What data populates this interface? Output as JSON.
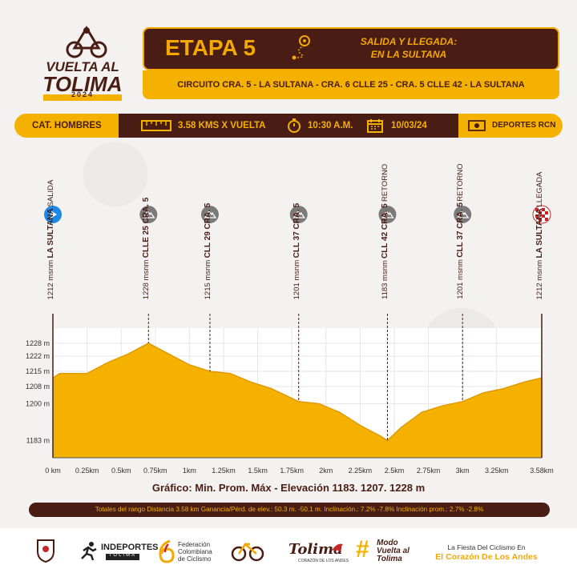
{
  "logo": {
    "line1": "VUELTA AL",
    "line2": "TOLIMA",
    "year": "2024"
  },
  "stage": {
    "title": "ETAPA 5",
    "start_finish_line1": "SALIDA Y LLEGADA:",
    "start_finish_line2": "EN LA SULTANA",
    "circuit": "CIRCUITO CRA. 5 - LA SULTANA - CRA. 6 CLLE 25 - CRA. 5 CLLE 42 - LA SULTANA"
  },
  "info": {
    "category": "CAT. HOMBRES",
    "distance": "3.58 KMS X VUELTA",
    "time": "10:30 A.M.",
    "date": "10/03/24",
    "broadcaster": "DEPORTES RCN"
  },
  "points": [
    {
      "type": "start",
      "line1": "SALIDA",
      "line2": "LA SULTANA",
      "elev": "1212 msnm",
      "km": 0
    },
    {
      "type": "climb",
      "line1": "",
      "line2": "CLLE 25 CRA. 5",
      "elev": "1228 msnm",
      "km": 0.7
    },
    {
      "type": "climb",
      "line1": "",
      "line2": "CLL 29 CRA. 5",
      "elev": "1215 msnm",
      "km": 1.15
    },
    {
      "type": "climb",
      "line1": "",
      "line2": "CLL 37 CRA. 5",
      "elev": "1201 msnm",
      "km": 1.8
    },
    {
      "type": "climb",
      "line1": "RETORNO",
      "line2": "CLL 42 CRA. 5",
      "elev": "1183 msnm",
      "km": 2.45
    },
    {
      "type": "climb",
      "line1": "RETORNO",
      "line2": "CLL 37 CRA. 5",
      "elev": "1201 msnm",
      "km": 3.0
    },
    {
      "type": "finish",
      "line1": "LLEGADA",
      "line2": "LA SULTANA",
      "elev": "1212 msnm",
      "km": 3.58
    }
  ],
  "chart_data": {
    "type": "area",
    "x": [
      0,
      0.05,
      0.25,
      0.4,
      0.55,
      0.7,
      0.85,
      1.0,
      1.15,
      1.3,
      1.45,
      1.6,
      1.8,
      1.95,
      2.1,
      2.25,
      2.4,
      2.45,
      2.55,
      2.7,
      2.85,
      3.0,
      3.15,
      3.3,
      3.45,
      3.58
    ],
    "y": [
      1212,
      1214,
      1214,
      1219,
      1223,
      1228,
      1223,
      1218,
      1215,
      1214,
      1210,
      1207,
      1201,
      1200,
      1196,
      1190,
      1185,
      1183,
      1189,
      1196,
      1199,
      1201,
      1205,
      1207,
      1210,
      1212
    ],
    "ylim": [
      1175,
      1235
    ],
    "y_ticks": [
      1183,
      1200,
      1208,
      1215,
      1222,
      1228
    ],
    "y_tick_labels": [
      "1183 m",
      "1200 m",
      "1208 m",
      "1215 m",
      "1222 m",
      "1228 m"
    ],
    "x_ticks": [
      0,
      0.25,
      0.5,
      0.75,
      1,
      1.25,
      1.5,
      1.75,
      2,
      2.25,
      2.5,
      2.75,
      3,
      3.25,
      3.58
    ],
    "x_tick_labels": [
      "0 km",
      "0.25km",
      "0.5km",
      "0.75km",
      "1km",
      "1.25km",
      "1.5km",
      "1.75km",
      "2km",
      "2.25km",
      "2.5km",
      "2.75km",
      "3km",
      "3.25km",
      "3.58km"
    ],
    "xlim": [
      0,
      3.58
    ],
    "fill_color": "#f5b100",
    "grid": true
  },
  "grafico": "Gráfico: Min. Prom. Máx - Elevación 1183. 1207. 1228 m",
  "totals": "Totales del rango Distancia 3.58 km  Ganancia/Pérd. de elev.: 50.3 m. -50.1 m.  Inclinación.: 7.2% -7.8%  Inclinación prom.: 2.7% -2.8%",
  "footer": {
    "indeportes": "INDEPORTES",
    "indeportes_sub": "TOLIMA",
    "fed_line1": "Federación",
    "fed_line2": "Colombiana",
    "fed_line3": "de Ciclismo",
    "tolima": "Tolima",
    "tolima_sub": "CORAZÓN DE LOS ANDES",
    "modo_line1": "Modo",
    "modo_line2": "Vuelta al",
    "modo_line3": "Tolima",
    "slogan1": "La Fiesta Del Ciclismo En",
    "slogan2": "El Corazón De Los Andes"
  },
  "colors": {
    "brown": "#4a1d14",
    "yellow": "#f5b100",
    "blue": "#1e88e5",
    "gray": "#7a7a7a",
    "red": "#c62828"
  }
}
